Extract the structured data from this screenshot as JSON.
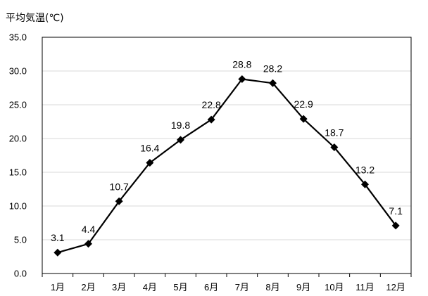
{
  "chart_data": {
    "type": "line",
    "title": "",
    "xlabel": "",
    "ylabel": "平均気温(℃)",
    "categories": [
      "1月",
      "2月",
      "3月",
      "4月",
      "5月",
      "6月",
      "7月",
      "8月",
      "9月",
      "10月",
      "11月",
      "12月"
    ],
    "series": [
      {
        "values": [
          3.1,
          4.4,
          10.7,
          16.4,
          19.8,
          22.8,
          28.8,
          28.2,
          22.9,
          18.7,
          13.2,
          7.1
        ]
      }
    ],
    "data_labels": [
      "3.1",
      "4.4",
      "10.7",
      "16.4",
      "19.8",
      "22.8",
      "28.8",
      "28.2",
      "22.9",
      "18.7",
      "13.2",
      "7.1"
    ],
    "yticks": [
      "0.0",
      "5.0",
      "10.0",
      "15.0",
      "20.0",
      "25.0",
      "30.0",
      "35.0"
    ],
    "ylim": [
      0,
      35
    ],
    "grid": true,
    "legend": "none",
    "marker": "diamond",
    "line_color": "#000000",
    "grid_color": "#d9d9d9"
  }
}
